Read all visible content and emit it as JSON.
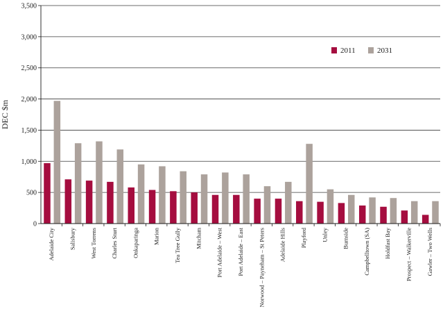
{
  "chart_data": {
    "type": "bar",
    "title": "",
    "xlabel": "",
    "ylabel": "DEC $m",
    "ylim": [
      0,
      3500
    ],
    "yticks": [
      0,
      500,
      1000,
      1500,
      2000,
      2500,
      3000,
      3500
    ],
    "ytick_labels": [
      "0",
      "500",
      "1,000",
      "1,500",
      "2,000",
      "2,500",
      "3,000",
      "3,500"
    ],
    "grid": true,
    "legend_position": "top-right",
    "categories": [
      "Adelaide City",
      "Salisbury",
      "West Torrens",
      "Charles Sturt",
      "Onkaparinga",
      "Marion",
      "Tea Tree Gully",
      "Mitcham",
      "Port Adelaide – West",
      "Port Adelaide – East",
      "Norwood – Payneham – St Peters",
      "Adelaide Hills",
      "Playford",
      "Unley",
      "Burnside",
      "Campbelltown (SA)",
      "Holdfast Bay",
      "Prospect – Walkerville",
      "Gawler – Two Wells"
    ],
    "series": [
      {
        "name": "2011",
        "color": "#a50d3f",
        "values": [
          970,
          710,
          690,
          670,
          580,
          540,
          520,
          500,
          460,
          460,
          400,
          400,
          360,
          350,
          330,
          290,
          270,
          210,
          140
        ]
      },
      {
        "name": "2031",
        "color": "#aca29c",
        "values": [
          1970,
          1290,
          1320,
          1190,
          950,
          920,
          840,
          790,
          820,
          790,
          600,
          670,
          1280,
          550,
          460,
          420,
          410,
          360,
          360
        ]
      }
    ]
  }
}
